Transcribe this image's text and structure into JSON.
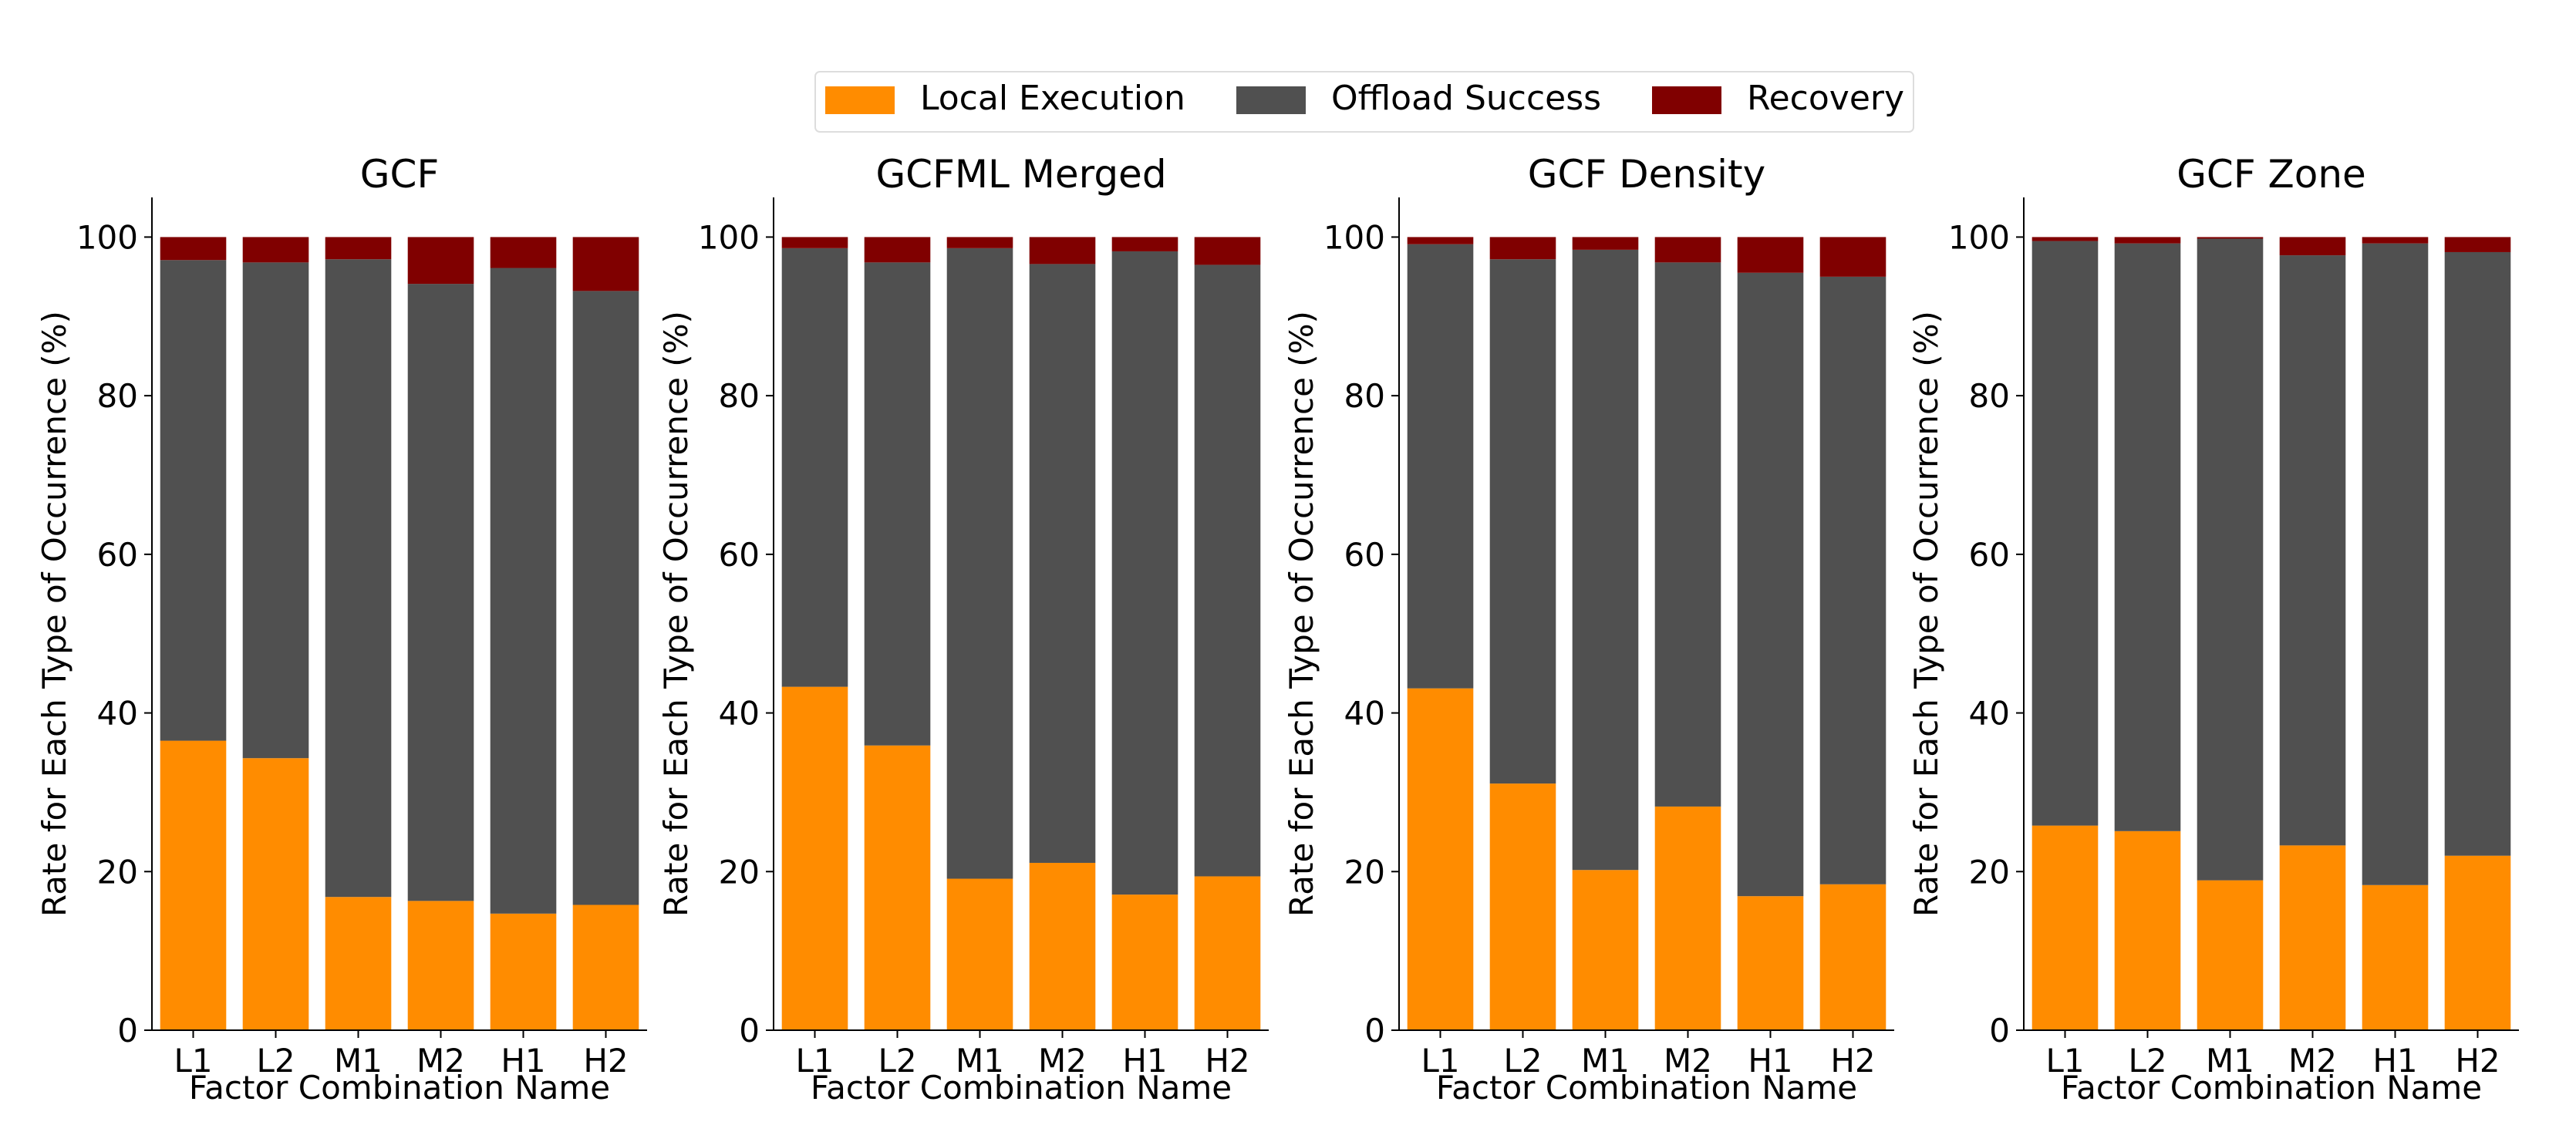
{
  "legend": {
    "items": [
      {
        "label": "Local Execution",
        "color": "#ff8c00"
      },
      {
        "label": "Offload Success",
        "color": "#505050"
      },
      {
        "label": "Recovery",
        "color": "#800000"
      }
    ]
  },
  "chart_data": [
    {
      "type": "bar",
      "stacked": true,
      "title": "GCF",
      "xlabel": "Factor Combination Name",
      "ylabel": "Rate for Each Type of Occurrence (%)",
      "ylim": [
        0,
        105
      ],
      "yticks": [
        "0",
        "20",
        "40",
        "60",
        "80",
        "100"
      ],
      "categories": [
        "L1",
        "L2",
        "M1",
        "M2",
        "H1",
        "H2"
      ],
      "series": [
        {
          "name": "Local Execution",
          "values": [
            36.5,
            34.3,
            16.8,
            16.3,
            14.7,
            15.8
          ]
        },
        {
          "name": "Offload Success",
          "values": [
            60.6,
            62.5,
            80.4,
            77.8,
            81.4,
            77.4
          ]
        },
        {
          "name": "Recovery",
          "values": [
            2.9,
            3.2,
            2.8,
            5.9,
            3.9,
            6.8
          ]
        }
      ]
    },
    {
      "type": "bar",
      "stacked": true,
      "title": "GCFML Merged",
      "xlabel": "Factor Combination Name",
      "ylabel": "Rate for Each Type of Occurrence (%)",
      "ylim": [
        0,
        105
      ],
      "yticks": [
        "0",
        "20",
        "40",
        "60",
        "80",
        "100"
      ],
      "categories": [
        "L1",
        "L2",
        "M1",
        "M2",
        "H1",
        "H2"
      ],
      "series": [
        {
          "name": "Local Execution",
          "values": [
            43.3,
            35.9,
            19.1,
            21.1,
            17.1,
            19.4
          ]
        },
        {
          "name": "Offload Success",
          "values": [
            55.3,
            60.9,
            79.5,
            75.5,
            81.1,
            77.1
          ]
        },
        {
          "name": "Recovery",
          "values": [
            1.4,
            3.2,
            1.4,
            3.4,
            1.8,
            3.5
          ]
        }
      ]
    },
    {
      "type": "bar",
      "stacked": true,
      "title": "GCF Density",
      "xlabel": "Factor Combination Name",
      "ylabel": "Rate for Each Type of Occurrence (%)",
      "ylim": [
        0,
        105
      ],
      "yticks": [
        "0",
        "20",
        "40",
        "60",
        "80",
        "100"
      ],
      "categories": [
        "L1",
        "L2",
        "M1",
        "M2",
        "H1",
        "H2"
      ],
      "series": [
        {
          "name": "Local Execution",
          "values": [
            43.1,
            31.1,
            20.2,
            28.2,
            16.9,
            18.4
          ]
        },
        {
          "name": "Offload Success",
          "values": [
            56.0,
            66.1,
            78.2,
            68.6,
            78.6,
            76.6
          ]
        },
        {
          "name": "Recovery",
          "values": [
            0.9,
            2.8,
            1.6,
            3.2,
            4.5,
            5.0
          ]
        }
      ]
    },
    {
      "type": "bar",
      "stacked": true,
      "title": "GCF Zone",
      "xlabel": "Factor Combination Name",
      "ylabel": "Rate for Each Type of Occurrence (%)",
      "ylim": [
        0,
        105
      ],
      "yticks": [
        "0",
        "20",
        "40",
        "60",
        "80",
        "100"
      ],
      "categories": [
        "L1",
        "L2",
        "M1",
        "M2",
        "H1",
        "H2"
      ],
      "series": [
        {
          "name": "Local Execution",
          "values": [
            25.8,
            25.1,
            18.9,
            23.3,
            18.3,
            22.0
          ]
        },
        {
          "name": "Offload Success",
          "values": [
            73.7,
            74.1,
            80.9,
            74.4,
            80.9,
            76.1
          ]
        },
        {
          "name": "Recovery",
          "values": [
            0.5,
            0.8,
            0.2,
            2.3,
            0.8,
            1.9
          ]
        }
      ]
    }
  ]
}
